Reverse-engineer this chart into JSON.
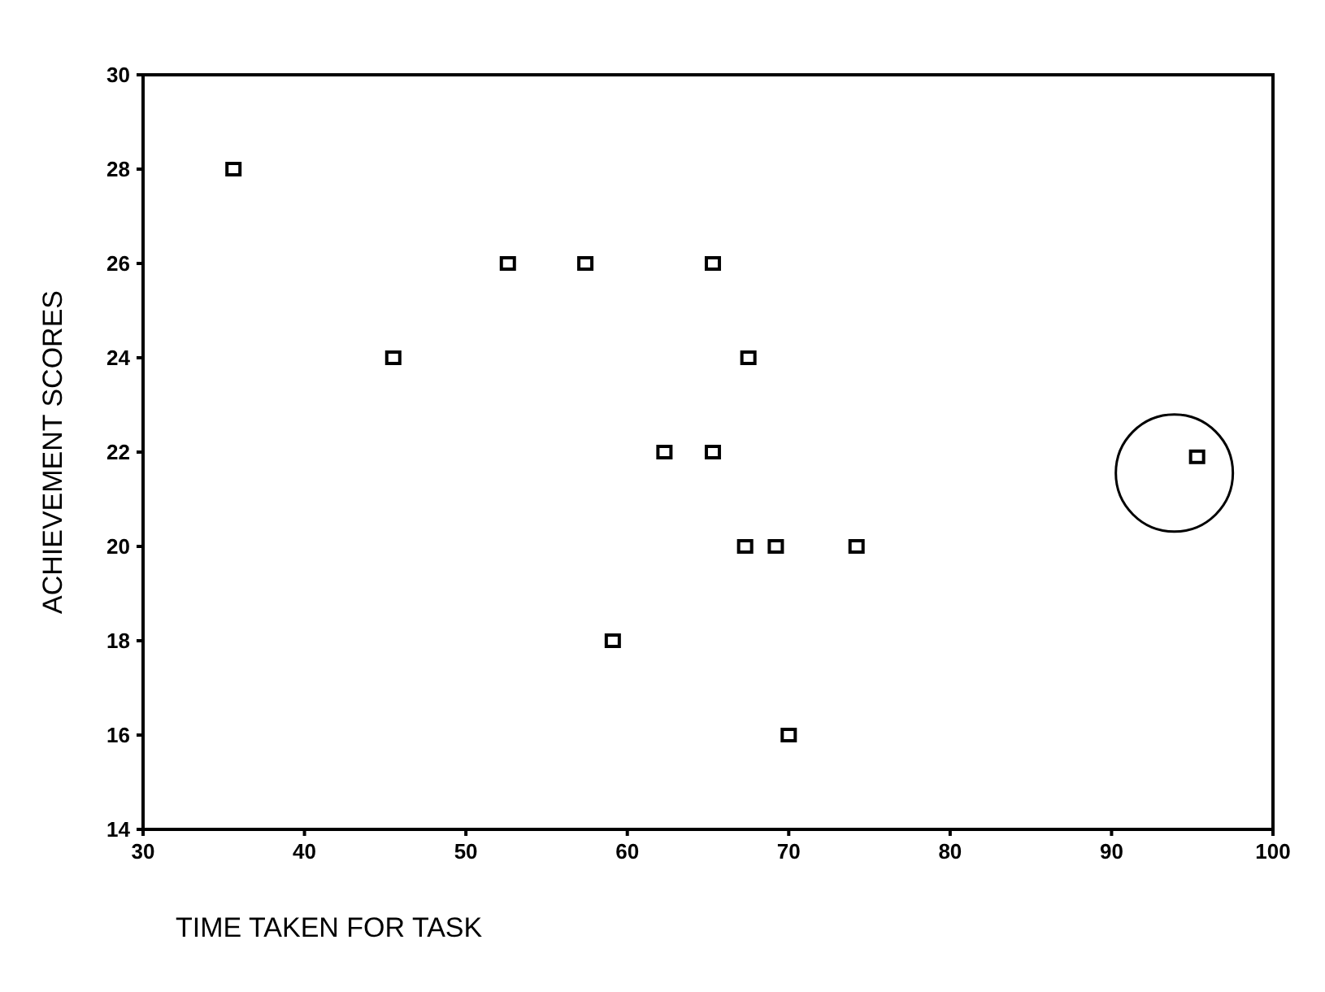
{
  "chart_data": {
    "type": "scatter",
    "xlabel": "TIME TAKEN FOR TASK",
    "ylabel": "ACHIEVEMENT SCORES",
    "x": [
      35.6,
      45.5,
      52.6,
      57.4,
      65.3,
      67.5,
      62.3,
      65.3,
      67.3,
      69.2,
      74.2,
      59.1,
      70,
      95.3
    ],
    "values": [
      28,
      24,
      26,
      26,
      26,
      24,
      22,
      22,
      20,
      20,
      20,
      18,
      16,
      21.9
    ],
    "color": "#000000",
    "marker": "square",
    "xlim": [
      30,
      100
    ],
    "xticks": [
      30,
      40,
      50,
      60,
      70,
      80,
      90,
      100
    ],
    "ylim": [
      14,
      30
    ],
    "yticks": [
      14,
      16,
      18,
      20,
      22,
      24,
      26,
      28,
      30
    ]
  }
}
